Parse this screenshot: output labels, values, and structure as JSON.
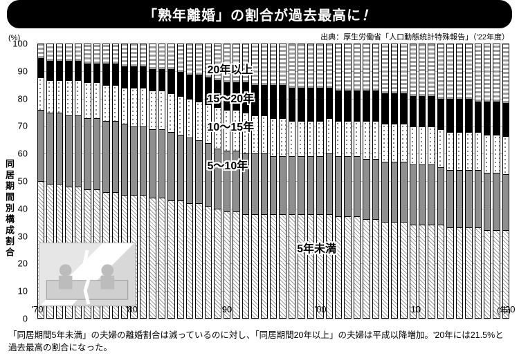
{
  "title": {
    "pre": "「熟年離婚」",
    "post": "の割合が過去最高に",
    "excl": "！"
  },
  "source": "出典：厚生労働省「人口動態統計特殊報告」（'22年度）",
  "y_unit": "(%)",
  "y_label": "同居期間別構成割合",
  "x_unit": "(年)",
  "ylim": [
    0,
    100
  ],
  "ytick_step": 10,
  "yticks": [
    "0",
    "10",
    "20",
    "30",
    "40",
    "50",
    "60",
    "70",
    "80",
    "90",
    "100"
  ],
  "x_ticks": [
    {
      "pos": 0,
      "label": "'70"
    },
    {
      "pos": 10,
      "label": "'80"
    },
    {
      "pos": 20,
      "label": "'90"
    },
    {
      "pos": 30,
      "label": "'00"
    },
    {
      "pos": 40,
      "label": "'10"
    },
    {
      "pos": 50,
      "label": "'20"
    }
  ],
  "series_labels": [
    {
      "text": "20年以上",
      "left_pct": 36,
      "top_pct": 6
    },
    {
      "text": "15～20年",
      "left_pct": 36,
      "top_pct": 16.5
    },
    {
      "text": "10～15年",
      "left_pct": 36,
      "top_pct": 27
    },
    {
      "text": "5～10年",
      "left_pct": 36,
      "top_pct": 41
    },
    {
      "text": "5年未満",
      "left_pct": 55,
      "top_pct": 71
    }
  ],
  "segments_order": [
    "under5",
    "5to10",
    "10to15",
    "15to20",
    "20plus"
  ],
  "colors": {
    "title_bg": "#000000",
    "title_fg": "#ffffff",
    "grid": "#bdbdbd",
    "bar_border": "#000000",
    "background": "#ffffff"
  },
  "n_bars": 51,
  "data": [
    {
      "under5": 50,
      "5to10": 26,
      "10to15": 12,
      "15to20": 7,
      "20plus": 5
    },
    {
      "under5": 49,
      "5to10": 26,
      "10to15": 12,
      "15to20": 7,
      "20plus": 6
    },
    {
      "under5": 49,
      "5to10": 26,
      "10to15": 12,
      "15to20": 7,
      "20plus": 6
    },
    {
      "under5": 48,
      "5to10": 26,
      "10to15": 13,
      "15to20": 7,
      "20plus": 6
    },
    {
      "under5": 48,
      "5to10": 26,
      "10to15": 13,
      "15to20": 7,
      "20plus": 6
    },
    {
      "under5": 47,
      "5to10": 26,
      "10to15": 13,
      "15to20": 7,
      "20plus": 7
    },
    {
      "under5": 47,
      "5to10": 26,
      "10to15": 13,
      "15to20": 7,
      "20plus": 7
    },
    {
      "under5": 46,
      "5to10": 26,
      "10to15": 13,
      "15to20": 8,
      "20plus": 7
    },
    {
      "under5": 46,
      "5to10": 26,
      "10to15": 13,
      "15to20": 8,
      "20plus": 7
    },
    {
      "under5": 45,
      "5to10": 26,
      "10to15": 13,
      "15to20": 8,
      "20plus": 8
    },
    {
      "under5": 45,
      "5to10": 25,
      "10to15": 14,
      "15to20": 8,
      "20plus": 8
    },
    {
      "under5": 45,
      "5to10": 25,
      "10to15": 14,
      "15to20": 8,
      "20plus": 8
    },
    {
      "under5": 44,
      "5to10": 25,
      "10to15": 14,
      "15to20": 8,
      "20plus": 9
    },
    {
      "under5": 44,
      "5to10": 25,
      "10to15": 14,
      "15to20": 8,
      "20plus": 9
    },
    {
      "under5": 43,
      "5to10": 25,
      "10to15": 14,
      "15to20": 9,
      "20plus": 9
    },
    {
      "under5": 43,
      "5to10": 24,
      "10to15": 14,
      "15to20": 9,
      "20plus": 10
    },
    {
      "under5": 42,
      "5to10": 24,
      "10to15": 14,
      "15to20": 9,
      "20plus": 11
    },
    {
      "under5": 42,
      "5to10": 23,
      "10to15": 14,
      "15to20": 10,
      "20plus": 11
    },
    {
      "under5": 41,
      "5to10": 23,
      "10to15": 14,
      "15to20": 10,
      "20plus": 12
    },
    {
      "under5": 40,
      "5to10": 22,
      "10to15": 15,
      "15to20": 10,
      "20plus": 13
    },
    {
      "under5": 39,
      "5to10": 22,
      "10to15": 15,
      "15to20": 10,
      "20plus": 14
    },
    {
      "under5": 39,
      "5to10": 22,
      "10to15": 15,
      "15to20": 10,
      "20plus": 14
    },
    {
      "under5": 38,
      "5to10": 22,
      "10to15": 15,
      "15to20": 11,
      "20plus": 14
    },
    {
      "under5": 38,
      "5to10": 22,
      "10to15": 14,
      "15to20": 11,
      "20plus": 15
    },
    {
      "under5": 38,
      "5to10": 22,
      "10to15": 14,
      "15to20": 11,
      "20plus": 15
    },
    {
      "under5": 38,
      "5to10": 21,
      "10to15": 14,
      "15to20": 12,
      "20plus": 15
    },
    {
      "under5": 38,
      "5to10": 21,
      "10to15": 14,
      "15to20": 12,
      "20plus": 15
    },
    {
      "under5": 38,
      "5to10": 21,
      "10to15": 13,
      "15to20": 12,
      "20plus": 16
    },
    {
      "under5": 38,
      "5to10": 21,
      "10to15": 13,
      "15to20": 12,
      "20plus": 16
    },
    {
      "under5": 38,
      "5to10": 21,
      "10to15": 13,
      "15to20": 12,
      "20plus": 16
    },
    {
      "under5": 38,
      "5to10": 21,
      "10to15": 13,
      "15to20": 12,
      "20plus": 16
    },
    {
      "under5": 38,
      "5to10": 22,
      "10to15": 13,
      "15to20": 11,
      "20plus": 16
    },
    {
      "under5": 37,
      "5to10": 22,
      "10to15": 13,
      "15to20": 11,
      "20plus": 17
    },
    {
      "under5": 37,
      "5to10": 22,
      "10to15": 13,
      "15to20": 11,
      "20plus": 17
    },
    {
      "under5": 37,
      "5to10": 22,
      "10to15": 13,
      "15to20": 11,
      "20plus": 17
    },
    {
      "under5": 36,
      "5to10": 22,
      "10to15": 14,
      "15to20": 11,
      "20plus": 17
    },
    {
      "under5": 36,
      "5to10": 22,
      "10to15": 14,
      "15to20": 11,
      "20plus": 17
    },
    {
      "under5": 35,
      "5to10": 22,
      "10to15": 14,
      "15to20": 11,
      "20plus": 18
    },
    {
      "under5": 35,
      "5to10": 22,
      "10to15": 14,
      "15to20": 11,
      "20plus": 18
    },
    {
      "under5": 35,
      "5to10": 22,
      "10to15": 14,
      "15to20": 11,
      "20plus": 18
    },
    {
      "under5": 34,
      "5to10": 22,
      "10to15": 14,
      "15to20": 11,
      "20plus": 19
    },
    {
      "under5": 34,
      "5to10": 22,
      "10to15": 14,
      "15to20": 11,
      "20plus": 19
    },
    {
      "under5": 34,
      "5to10": 22,
      "10to15": 14,
      "15to20": 11,
      "20plus": 19
    },
    {
      "under5": 34,
      "5to10": 21,
      "10to15": 14,
      "15to20": 11,
      "20plus": 20
    },
    {
      "under5": 33,
      "5to10": 21,
      "10to15": 14,
      "15to20": 12,
      "20plus": 20
    },
    {
      "under5": 33,
      "5to10": 21,
      "10to15": 14,
      "15to20": 12,
      "20plus": 20
    },
    {
      "under5": 33,
      "5to10": 21,
      "10to15": 14,
      "15to20": 12,
      "20plus": 20
    },
    {
      "under5": 33,
      "5to10": 21,
      "10to15": 14,
      "15to20": 11,
      "20plus": 21
    },
    {
      "under5": 32,
      "5to10": 21,
      "10to15": 14,
      "15to20": 12,
      "20plus": 21
    },
    {
      "under5": 32,
      "5to10": 21,
      "10to15": 14,
      "15to20": 12,
      "20plus": 21
    },
    {
      "under5": 32,
      "5to10": 20.5,
      "10to15": 14,
      "15to20": 12,
      "20plus": 21.5
    }
  ],
  "caption": "「同居期間5年未満」の夫婦の離婚割合は減っているのに対し、「同居期間20年以上」の夫婦は平成以降増加。'20年には21.5%と過去最高の割合になった。"
}
